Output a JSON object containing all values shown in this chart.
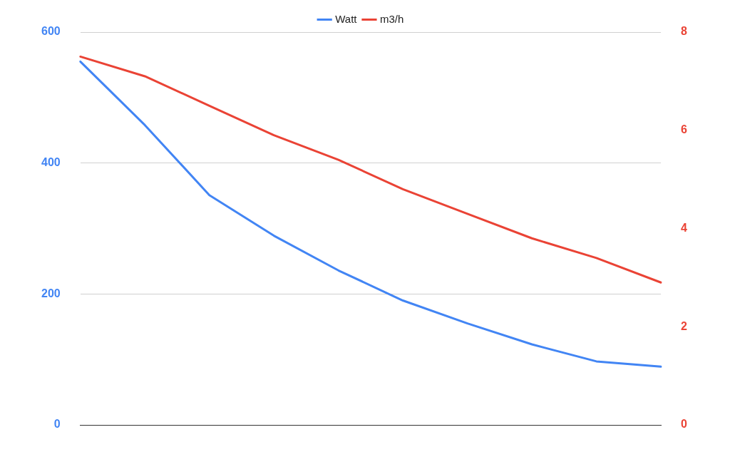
{
  "chart_data": {
    "type": "line",
    "categories": [
      null,
      null,
      null,
      null,
      null,
      null,
      null,
      null,
      null,
      null
    ],
    "series": [
      {
        "name": "Watt",
        "color": "#4285f4",
        "values": [
          555,
          458,
          351,
          289,
          236,
          190,
          155,
          123,
          97,
          89
        ]
      },
      {
        "name": "m3/h",
        "color": "#ea4335",
        "axis": "y2",
        "values": [
          7.5,
          7.1,
          6.5,
          5.9,
          5.4,
          4.8,
          4.3,
          3.8,
          3.4,
          2.9
        ]
      }
    ],
    "ylim": [
      0,
      600
    ],
    "yticks": [
      0,
      200,
      400,
      600
    ],
    "y2lim": [
      0,
      8
    ],
    "y2ticks": [
      0,
      2,
      4,
      6,
      8
    ],
    "grid": "y",
    "legend": "top",
    "tick_labels": "y",
    "marker": "none",
    "line_style": "solid"
  }
}
